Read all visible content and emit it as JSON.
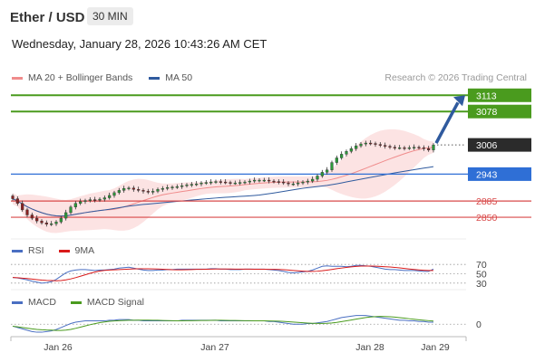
{
  "header": {
    "symbol": "Ether / USD",
    "timeframe": "30 MIN",
    "datetime": "Wednesday, January 28, 2026 10:43:26 AM CET",
    "credit": "Research © 2026 Trading Central"
  },
  "legends": {
    "main": [
      {
        "label": "MA 20 + Bollinger Bands",
        "color": "#f08c8c"
      },
      {
        "label": "MA 50",
        "color": "#2f5a9e"
      }
    ],
    "rsi": [
      {
        "label": "RSI",
        "color": "#4a6fc2"
      },
      {
        "label": "9MA",
        "color": "#d91a1a"
      }
    ],
    "macd": [
      {
        "label": "MACD",
        "color": "#4a6fc2"
      },
      {
        "label": "MACD Signal",
        "color": "#4a9b1e"
      }
    ]
  },
  "colors": {
    "target": "#4a9b1e",
    "pivot": "#2f6fd6",
    "support": "#d94a4a",
    "last": "#2b2b2b",
    "arrow": "#2f5a9e"
  },
  "chart_data": {
    "type": "candlestick",
    "ylim": [
      2815,
      3135
    ],
    "x_ticks": [
      "Jan 26",
      "Jan 27",
      "Jan 28",
      "Jan 29"
    ],
    "levels": [
      {
        "value": 3113,
        "label": "3113",
        "kind": "target"
      },
      {
        "value": 3078,
        "label": "3078",
        "kind": "target"
      },
      {
        "value": 3006,
        "label": "3006",
        "kind": "last"
      },
      {
        "value": 2943,
        "label": "2943",
        "kind": "pivot"
      },
      {
        "value": 2885,
        "label": "2885",
        "kind": "support"
      },
      {
        "value": 2850,
        "label": "2850",
        "kind": "support"
      }
    ],
    "close": [
      2890,
      2880,
      2866,
      2855,
      2848,
      2842,
      2838,
      2835,
      2836,
      2840,
      2848,
      2860,
      2872,
      2880,
      2884,
      2886,
      2888,
      2887,
      2889,
      2892,
      2897,
      2903,
      2908,
      2912,
      2913,
      2910,
      2908,
      2906,
      2904,
      2906,
      2910,
      2912,
      2914,
      2915,
      2916,
      2918,
      2920,
      2921,
      2922,
      2924,
      2925,
      2926,
      2927,
      2926,
      2925,
      2924,
      2924,
      2925,
      2926,
      2928,
      2930,
      2930,
      2930,
      2928,
      2927,
      2926,
      2924,
      2922,
      2922,
      2924,
      2926,
      2928,
      2932,
      2939,
      2947,
      2952,
      2968,
      2978,
      2986,
      2992,
      2998,
      3004,
      3008,
      3010,
      3009,
      3007,
      3005,
      3003,
      3001,
      3000,
      3000,
      2999,
      3000,
      3001,
      3000,
      2998,
      2995,
      3006
    ],
    "rsi": {
      "levels": [
        70,
        50,
        30
      ],
      "ylim": [
        20,
        80
      ],
      "values": [
        42,
        41,
        39,
        37,
        34,
        32,
        30,
        31,
        33,
        38,
        45,
        52,
        56,
        58,
        59,
        59,
        58,
        57,
        58,
        58,
        59,
        60,
        62,
        63,
        64,
        62,
        60,
        58,
        57,
        57,
        58,
        58,
        59,
        59,
        60,
        60,
        60,
        60,
        60,
        60,
        60,
        61,
        61,
        60,
        60,
        59,
        59,
        59,
        60,
        60,
        60,
        60,
        60,
        59,
        58,
        57,
        55,
        53,
        52,
        53,
        54,
        55,
        58,
        62,
        66,
        67,
        66,
        66,
        66,
        65,
        66,
        68,
        68,
        67,
        66,
        64,
        62,
        60,
        59,
        59,
        58,
        57,
        57,
        57,
        56,
        55,
        55,
        60
      ]
    },
    "macd": {
      "zero": 0,
      "ylim": [
        -16,
        18
      ],
      "values": [
        -3,
        -5,
        -7,
        -9,
        -11,
        -12,
        -12,
        -11,
        -10,
        -8,
        -5,
        -2,
        1,
        3,
        4,
        5,
        5,
        5,
        5,
        5,
        6,
        6,
        7,
        7,
        7,
        6,
        6,
        5,
        5,
        5,
        5,
        5,
        5,
        5,
        5,
        6,
        6,
        6,
        6,
        6,
        6,
        6,
        6,
        5,
        5,
        5,
        5,
        5,
        5,
        5,
        5,
        5,
        5,
        4,
        4,
        3,
        2,
        1,
        0,
        0,
        0,
        1,
        1,
        2,
        3,
        4,
        6,
        8,
        10,
        11,
        12,
        13,
        13,
        13,
        12,
        11,
        10,
        9,
        8,
        7,
        6,
        6,
        5,
        5,
        4,
        4,
        3,
        3
      ]
    },
    "future_target": 3113
  }
}
